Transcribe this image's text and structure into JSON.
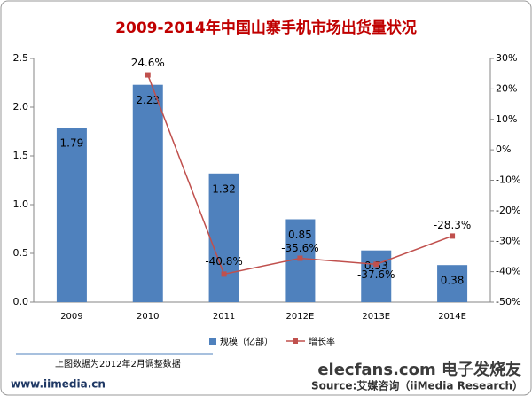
{
  "chart_data": {
    "type": "bar-line",
    "title": "2009-2014年中国山寨手机市场出货量状况",
    "categories": [
      "2009",
      "2010",
      "2011",
      "2012E",
      "2013E",
      "2014E"
    ],
    "series": [
      {
        "name": "规模（亿部）",
        "color": "#4f81bd",
        "type": "bar",
        "values": [
          1.79,
          2.23,
          1.32,
          0.85,
          0.53,
          0.38
        ]
      },
      {
        "name": "增长率",
        "color": "#c0504d",
        "type": "line",
        "axis": "y2",
        "values": [
          null,
          24.6,
          -40.8,
          -35.6,
          -37.6,
          -28.3
        ],
        "value_labels": [
          null,
          "24.6%",
          "-40.8%",
          "-35.6%",
          "-37.6%",
          "-28.3%"
        ]
      }
    ],
    "ylim": [
      0,
      2.5
    ],
    "yticks": [
      {
        "value": 0,
        "label": "0.0"
      },
      0.5,
      {
        "value": 1,
        "label": "1.0"
      },
      1.5,
      {
        "value": 2,
        "label": "2.0"
      },
      2.5
    ],
    "y2lim": [
      -50,
      30
    ],
    "y2ticks": [
      {
        "value": -50,
        "label": "-50%"
      },
      {
        "value": -40,
        "label": "-40%"
      },
      {
        "value": -30,
        "label": "-30%"
      },
      {
        "value": -20,
        "label": "-20%"
      },
      {
        "value": -10,
        "label": "-10%"
      },
      {
        "value": 0,
        "label": "0%"
      },
      {
        "value": 10,
        "label": "10%"
      },
      {
        "value": 20,
        "label": "20%"
      },
      {
        "value": 30,
        "label": "30%"
      }
    ],
    "legend": "bottom",
    "grid": false,
    "footnote": "上图数据为2012年2月调整数据",
    "website": "www.iimedia.cn",
    "source": "Source:艾媒咨询（iiMedia Research）",
    "watermark": "elecfans.com 电子发烧友"
  }
}
